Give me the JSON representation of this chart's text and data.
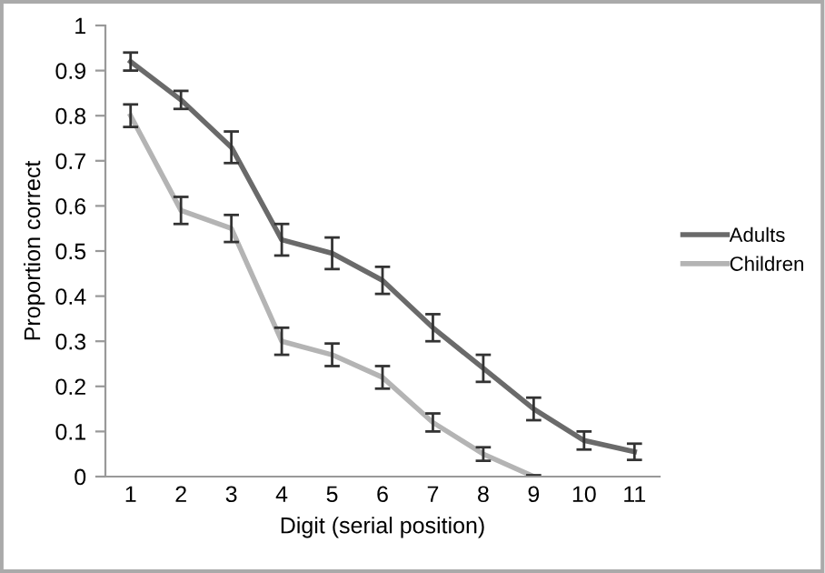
{
  "chart_data": {
    "type": "line",
    "xlabel": "Digit (serial position)",
    "ylabel": "Proportion correct",
    "categories": [
      "1",
      "2",
      "3",
      "4",
      "5",
      "6",
      "7",
      "8",
      "9",
      "10",
      "11"
    ],
    "ylim": [
      0,
      1
    ],
    "yticks": [
      0,
      0.1,
      0.2,
      0.3,
      0.4,
      0.5,
      0.6,
      0.7,
      0.8,
      0.9,
      1
    ],
    "grid": false,
    "legend": "right",
    "marker": "none",
    "line_style": "solid",
    "series": [
      {
        "name": "Adults",
        "color": "#6a6a6a",
        "values": [
          0.92,
          0.835,
          0.73,
          0.525,
          0.495,
          0.435,
          0.33,
          0.24,
          0.15,
          0.08,
          0.055
        ],
        "errors": [
          0.02,
          0.02,
          0.035,
          0.035,
          0.035,
          0.03,
          0.03,
          0.03,
          0.025,
          0.02,
          0.018
        ]
      },
      {
        "name": "Children",
        "color": "#b4b4b4",
        "values": [
          0.8,
          0.59,
          0.55,
          0.3,
          0.27,
          0.22,
          0.12,
          0.05,
          0.0,
          null,
          null
        ],
        "errors": [
          0.025,
          0.03,
          0.03,
          0.03,
          0.025,
          0.025,
          0.02,
          0.015,
          0.003,
          null,
          null
        ]
      }
    ]
  }
}
